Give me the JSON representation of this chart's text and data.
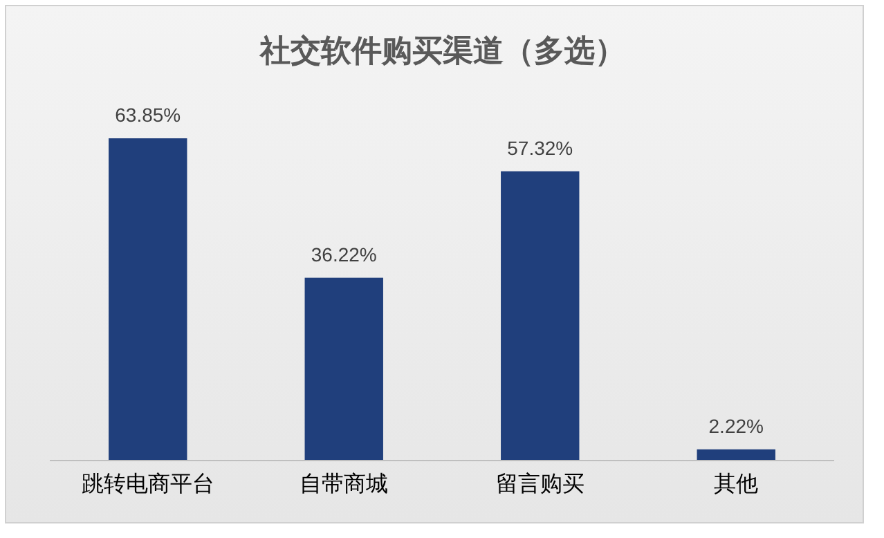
{
  "chart_data": {
    "type": "bar",
    "title": "社交软件购买渠道（多选）",
    "categories": [
      "跳转电商平台",
      "自带商城",
      "留言购买",
      "其他"
    ],
    "values": [
      63.85,
      36.22,
      57.32,
      2.22
    ],
    "value_labels": [
      "63.85%",
      "36.22%",
      "57.32%",
      "2.22%"
    ],
    "color": "#203f7c"
  }
}
